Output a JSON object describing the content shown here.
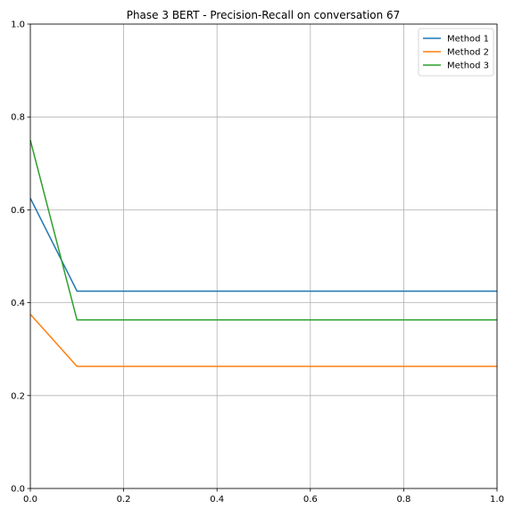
{
  "chart_data": {
    "type": "line",
    "title": "Phase 3 BERT - Precision-Recall on conversation 67",
    "xlabel": "",
    "ylabel": "",
    "xlim": [
      0,
      1
    ],
    "ylim": [
      0,
      1
    ],
    "xticks": [
      "0.0",
      "0.2",
      "0.4",
      "0.6",
      "0.8",
      "1.0"
    ],
    "yticks": [
      "0.0",
      "0.2",
      "0.4",
      "0.6",
      "0.8",
      "1.0"
    ],
    "grid": true,
    "legend_position": "top-right",
    "series": [
      {
        "name": "Method 1",
        "color": "#1f77b4",
        "x": [
          0.0,
          0.1,
          1.0
        ],
        "y": [
          0.625,
          0.425,
          0.425
        ]
      },
      {
        "name": "Method 2",
        "color": "#ff7f0e",
        "x": [
          0.0,
          0.1,
          1.0
        ],
        "y": [
          0.375,
          0.263,
          0.263
        ]
      },
      {
        "name": "Method 3",
        "color": "#2ca02c",
        "x": [
          0.0,
          0.1,
          1.0
        ],
        "y": [
          0.75,
          0.363,
          0.363
        ]
      }
    ]
  }
}
